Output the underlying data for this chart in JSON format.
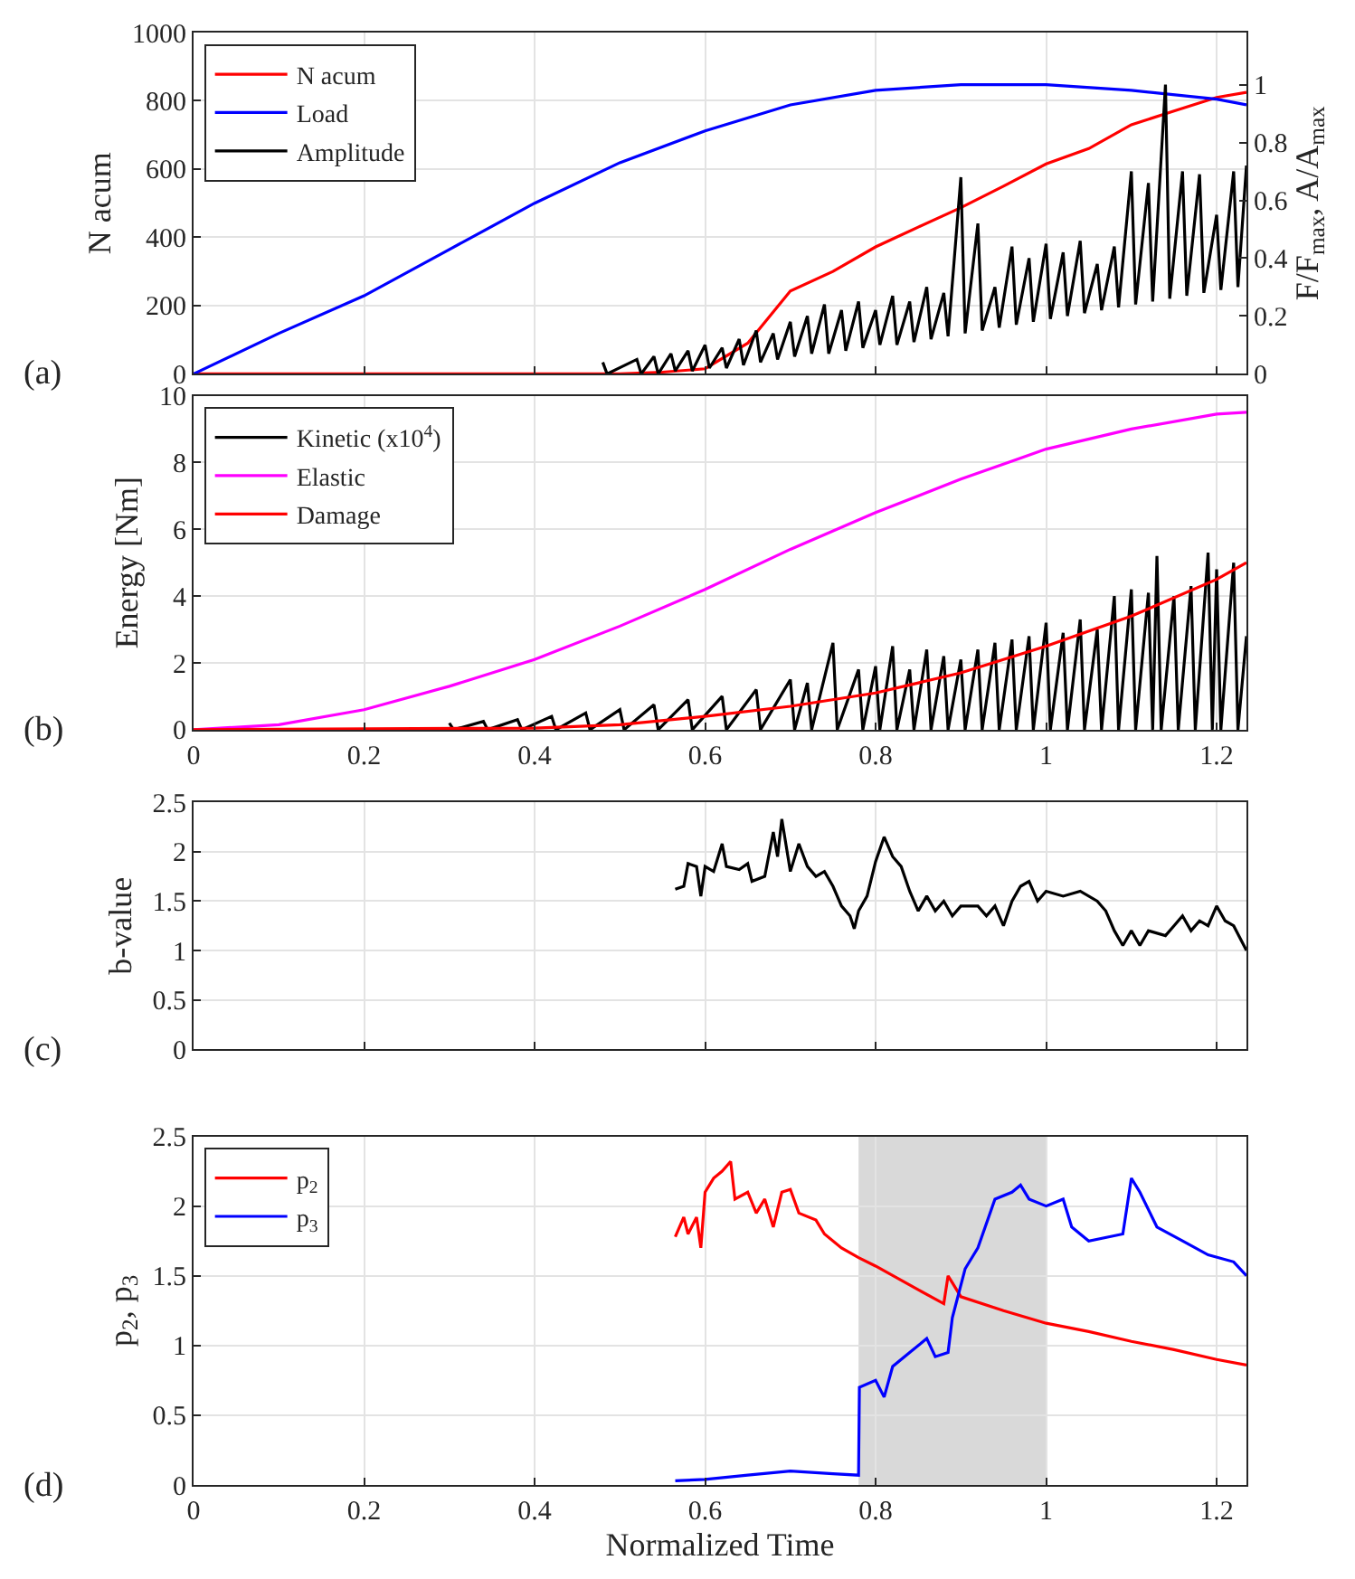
{
  "chart_data": [
    {
      "type": "line",
      "ylabel": "N acum",
      "y2label": "F/F$_{max}$, A/A$_{max}$",
      "annotations": [
        "(a)"
      ],
      "xlim": [
        0,
        1.235
      ],
      "xticks": [
        0,
        0.2,
        0.4,
        0.6,
        0.8,
        1,
        1.2
      ],
      "ylim": [
        0,
        1000
      ],
      "yticks": [
        0,
        200,
        400,
        600,
        800,
        1000
      ],
      "y2lim": [
        0,
        1.18
      ],
      "y2ticks": [
        0,
        0.2,
        0.4,
        0.6,
        0.8,
        1
      ],
      "grid": true,
      "legend": "top left",
      "tick_labels": "y",
      "series": [
        {
          "name": "N acum",
          "color": "#ff0000",
          "x": [
            0,
            0.5,
            0.55,
            0.6,
            0.65,
            0.7,
            0.75,
            0.8,
            0.85,
            0.9,
            0.95,
            1.0,
            1.05,
            1.1,
            1.15,
            1.2,
            1.235
          ],
          "values": [
            0,
            0,
            5,
            15,
            90,
            243,
            300,
            372,
            430,
            487,
            550,
            615,
            660,
            730,
            770,
            810,
            825
          ]
        },
        {
          "name": "Load",
          "color": "#0000ff",
          "axis": "y2",
          "x": [
            0,
            0.1,
            0.2,
            0.3,
            0.4,
            0.5,
            0.6,
            0.7,
            0.8,
            0.9,
            1.0,
            1.1,
            1.2,
            1.235
          ],
          "values": [
            0,
            0.14,
            0.27,
            0.43,
            0.59,
            0.73,
            0.84,
            0.93,
            0.98,
            1.0,
            1.0,
            0.98,
            0.95,
            0.93
          ]
        },
        {
          "name": "Amplitude",
          "color": "#000000",
          "axis": "y2",
          "x": [
            0.48,
            0.485,
            0.52,
            0.525,
            0.54,
            0.545,
            0.56,
            0.565,
            0.58,
            0.585,
            0.6,
            0.605,
            0.62,
            0.625,
            0.64,
            0.645,
            0.66,
            0.665,
            0.68,
            0.685,
            0.7,
            0.705,
            0.72,
            0.725,
            0.74,
            0.745,
            0.76,
            0.765,
            0.78,
            0.785,
            0.8,
            0.805,
            0.82,
            0.825,
            0.84,
            0.845,
            0.86,
            0.865,
            0.88,
            0.885,
            0.9,
            0.905,
            0.92,
            0.925,
            0.94,
            0.945,
            0.96,
            0.965,
            0.98,
            0.985,
            1.0,
            1.005,
            1.02,
            1.025,
            1.04,
            1.045,
            1.06,
            1.065,
            1.08,
            1.085,
            1.1,
            1.105,
            1.12,
            1.125,
            1.14,
            1.145,
            1.16,
            1.165,
            1.18,
            1.185,
            1.2,
            1.205,
            1.22,
            1.225,
            1.235
          ],
          "values": [
            0.04,
            0,
            0.05,
            0,
            0.06,
            0,
            0.07,
            0.01,
            0.08,
            0.01,
            0.1,
            0.02,
            0.09,
            0.02,
            0.12,
            0.03,
            0.15,
            0.04,
            0.14,
            0.05,
            0.18,
            0.06,
            0.2,
            0.07,
            0.24,
            0.07,
            0.22,
            0.08,
            0.25,
            0.09,
            0.22,
            0.1,
            0.27,
            0.1,
            0.25,
            0.11,
            0.3,
            0.12,
            0.28,
            0.13,
            0.68,
            0.14,
            0.52,
            0.15,
            0.3,
            0.16,
            0.44,
            0.17,
            0.4,
            0.18,
            0.45,
            0.19,
            0.42,
            0.2,
            0.46,
            0.21,
            0.38,
            0.22,
            0.44,
            0.23,
            0.7,
            0.24,
            0.66,
            0.25,
            1.0,
            0.26,
            0.7,
            0.27,
            0.69,
            0.28,
            0.55,
            0.29,
            0.7,
            0.3,
            0.72
          ]
        }
      ]
    },
    {
      "type": "line",
      "ylabel": "Energy [Nm]",
      "annotations": [
        "(b)"
      ],
      "xlim": [
        0,
        1.235
      ],
      "xticks": [
        0,
        0.2,
        0.4,
        0.6,
        0.8,
        1,
        1.2
      ],
      "ylim": [
        0,
        10
      ],
      "yticks": [
        0,
        2,
        4,
        6,
        8,
        10
      ],
      "grid": true,
      "legend": "top left",
      "series": [
        {
          "name": "Kinetic (x10$^{4}$)",
          "color": "#000000",
          "x": [
            0.3,
            0.305,
            0.34,
            0.345,
            0.38,
            0.385,
            0.42,
            0.425,
            0.46,
            0.465,
            0.5,
            0.505,
            0.54,
            0.545,
            0.58,
            0.585,
            0.62,
            0.625,
            0.66,
            0.665,
            0.7,
            0.705,
            0.72,
            0.725,
            0.75,
            0.755,
            0.78,
            0.785,
            0.8,
            0.805,
            0.82,
            0.825,
            0.84,
            0.845,
            0.86,
            0.865,
            0.88,
            0.885,
            0.9,
            0.905,
            0.92,
            0.925,
            0.94,
            0.945,
            0.96,
            0.965,
            0.98,
            0.985,
            1.0,
            1.005,
            1.02,
            1.025,
            1.04,
            1.045,
            1.06,
            1.065,
            1.08,
            1.085,
            1.1,
            1.105,
            1.12,
            1.125,
            1.13,
            1.135,
            1.15,
            1.155,
            1.17,
            1.175,
            1.19,
            1.195,
            1.2,
            1.205,
            1.22,
            1.225,
            1.235
          ],
          "values": [
            0.2,
            0,
            0.25,
            0,
            0.3,
            0,
            0.4,
            0,
            0.5,
            0,
            0.6,
            0,
            0.75,
            0,
            0.9,
            0,
            1.0,
            0,
            1.2,
            0,
            1.5,
            0,
            1.4,
            0,
            2.6,
            0,
            1.8,
            0,
            1.9,
            0,
            2.5,
            0,
            1.8,
            0,
            2.4,
            0,
            2.2,
            0,
            2.1,
            0,
            2.4,
            0,
            2.6,
            0,
            2.7,
            0,
            2.8,
            0,
            3.2,
            0,
            2.9,
            0,
            3.3,
            0,
            3.0,
            0,
            4.0,
            0,
            4.2,
            0,
            4.1,
            0,
            5.2,
            0,
            4.0,
            0,
            4.3,
            0,
            5.3,
            0,
            4.8,
            0,
            5.0,
            0,
            2.8
          ]
        },
        {
          "name": "Elastic",
          "color": "#ff00ff",
          "x": [
            0,
            0.1,
            0.2,
            0.3,
            0.4,
            0.5,
            0.6,
            0.7,
            0.8,
            0.9,
            1.0,
            1.1,
            1.2,
            1.235
          ],
          "values": [
            0,
            0.15,
            0.6,
            1.3,
            2.1,
            3.1,
            4.2,
            5.4,
            6.5,
            7.5,
            8.4,
            9.0,
            9.45,
            9.5
          ]
        },
        {
          "name": "Damage",
          "color": "#ff0000",
          "x": [
            0,
            0.4,
            0.5,
            0.6,
            0.7,
            0.8,
            0.9,
            1.0,
            1.1,
            1.2,
            1.235
          ],
          "values": [
            0,
            0.05,
            0.15,
            0.4,
            0.7,
            1.1,
            1.7,
            2.5,
            3.4,
            4.5,
            5.0
          ]
        }
      ]
    },
    {
      "type": "line",
      "ylabel": "b-value",
      "annotations": [
        "(c)"
      ],
      "xlim": [
        0,
        1.235
      ],
      "xticks": [
        0,
        0.2,
        0.4,
        0.6,
        0.8,
        1,
        1.2
      ],
      "ylim": [
        0,
        2.5
      ],
      "yticks": [
        0,
        0.5,
        1,
        1.5,
        2,
        2.5
      ],
      "grid": true,
      "tick_labels": "y",
      "series": [
        {
          "color": "#000000",
          "x": [
            0.565,
            0.575,
            0.58,
            0.59,
            0.595,
            0.6,
            0.61,
            0.62,
            0.625,
            0.64,
            0.65,
            0.655,
            0.67,
            0.68,
            0.685,
            0.69,
            0.7,
            0.71,
            0.72,
            0.73,
            0.74,
            0.75,
            0.76,
            0.77,
            0.775,
            0.78,
            0.79,
            0.8,
            0.81,
            0.82,
            0.83,
            0.84,
            0.85,
            0.86,
            0.87,
            0.88,
            0.89,
            0.9,
            0.92,
            0.93,
            0.94,
            0.95,
            0.96,
            0.97,
            0.98,
            0.99,
            1.0,
            1.02,
            1.04,
            1.06,
            1.07,
            1.08,
            1.09,
            1.1,
            1.11,
            1.12,
            1.14,
            1.15,
            1.16,
            1.17,
            1.18,
            1.19,
            1.2,
            1.21,
            1.22,
            1.235
          ],
          "values": [
            1.62,
            1.65,
            1.88,
            1.85,
            1.55,
            1.85,
            1.8,
            2.08,
            1.85,
            1.82,
            1.88,
            1.7,
            1.75,
            2.2,
            1.95,
            2.33,
            1.8,
            2.08,
            1.85,
            1.75,
            1.8,
            1.65,
            1.45,
            1.35,
            1.22,
            1.4,
            1.55,
            1.9,
            2.15,
            1.95,
            1.85,
            1.6,
            1.4,
            1.55,
            1.4,
            1.5,
            1.35,
            1.45,
            1.45,
            1.35,
            1.45,
            1.25,
            1.5,
            1.65,
            1.7,
            1.5,
            1.6,
            1.55,
            1.6,
            1.5,
            1.4,
            1.2,
            1.05,
            1.2,
            1.05,
            1.2,
            1.15,
            1.25,
            1.35,
            1.2,
            1.3,
            1.25,
            1.45,
            1.3,
            1.25,
            1.0
          ]
        }
      ]
    },
    {
      "type": "line",
      "xlabel": "Normalized Time",
      "ylabel": "p$_{2}$, p$_{3}$",
      "annotations": [
        "(d)"
      ],
      "xlim": [
        0,
        1.235
      ],
      "xticks": [
        0,
        0.2,
        0.4,
        0.6,
        0.8,
        1,
        1.2
      ],
      "ylim": [
        0,
        2.5
      ],
      "yticks": [
        0,
        0.5,
        1,
        1.5,
        2,
        2.5
      ],
      "grid": true,
      "legend": "top left",
      "bands": [
        {
          "axis": "x",
          "from": 0.78,
          "to": 1.0,
          "color": "#d9d9d9"
        }
      ],
      "series": [
        {
          "name": "p$_{2}$",
          "color": "#ff0000",
          "x": [
            0.565,
            0.575,
            0.58,
            0.59,
            0.595,
            0.6,
            0.61,
            0.62,
            0.63,
            0.635,
            0.65,
            0.66,
            0.67,
            0.68,
            0.69,
            0.7,
            0.71,
            0.73,
            0.74,
            0.76,
            0.78,
            0.8,
            0.85,
            0.88,
            0.885,
            0.89,
            0.9,
            0.95,
            1.0,
            1.05,
            1.1,
            1.15,
            1.2,
            1.235
          ],
          "values": [
            1.78,
            1.92,
            1.8,
            1.92,
            1.7,
            2.1,
            2.2,
            2.25,
            2.32,
            2.05,
            2.1,
            1.95,
            2.05,
            1.85,
            2.1,
            2.12,
            1.95,
            1.9,
            1.8,
            1.7,
            1.63,
            1.57,
            1.4,
            1.3,
            1.5,
            1.45,
            1.35,
            1.25,
            1.16,
            1.1,
            1.03,
            0.97,
            0.9,
            0.86
          ]
        },
        {
          "name": "p$_{3}$",
          "color": "#0000ff",
          "x": [
            0.565,
            0.6,
            0.65,
            0.7,
            0.75,
            0.78,
            0.781,
            0.8,
            0.81,
            0.82,
            0.84,
            0.86,
            0.87,
            0.885,
            0.89,
            0.905,
            0.92,
            0.94,
            0.96,
            0.97,
            0.98,
            1.0,
            1.02,
            1.03,
            1.05,
            1.09,
            1.1,
            1.11,
            1.13,
            1.16,
            1.19,
            1.22,
            1.235
          ],
          "values": [
            0.03,
            0.04,
            0.07,
            0.1,
            0.08,
            0.07,
            0.7,
            0.75,
            0.63,
            0.85,
            0.95,
            1.05,
            0.92,
            0.95,
            1.2,
            1.55,
            1.7,
            2.05,
            2.1,
            2.15,
            2.05,
            2.0,
            2.05,
            1.85,
            1.75,
            1.8,
            2.2,
            2.1,
            1.85,
            1.75,
            1.65,
            1.6,
            1.5
          ]
        }
      ]
    }
  ]
}
